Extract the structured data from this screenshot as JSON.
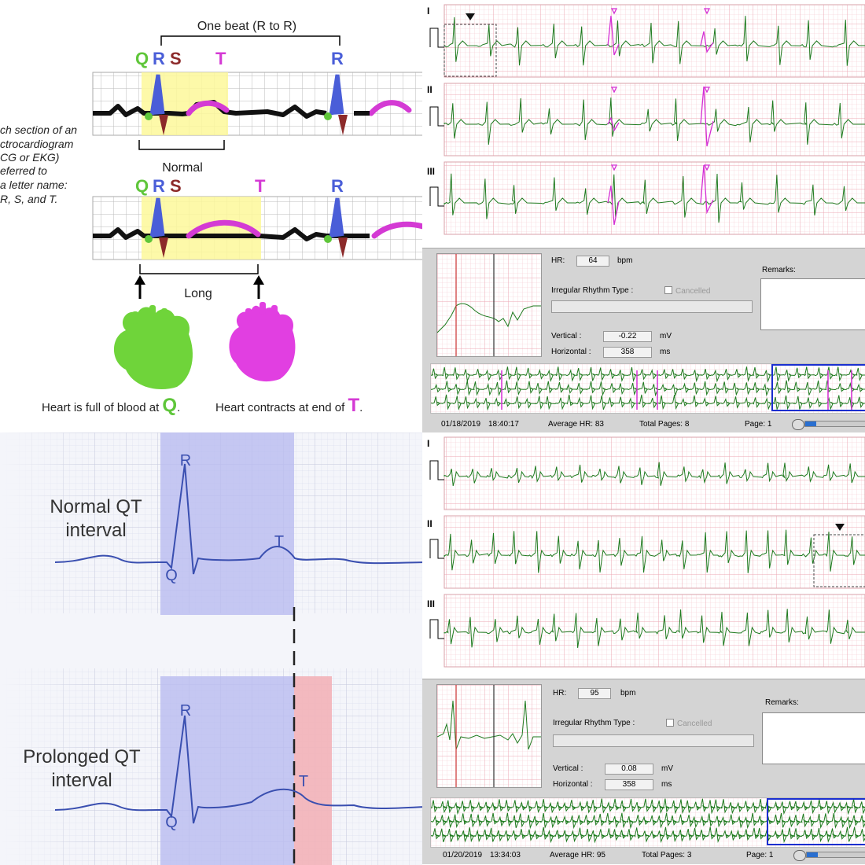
{
  "top_left": {
    "beat_label": "One beat (R to R)",
    "letters_top": {
      "q": "Q",
      "r": "R",
      "s": "S",
      "t": "T",
      "r2": "R"
    },
    "side_text": [
      "ch section of an",
      "ctrocardiogram",
      "CG or EKG)",
      "eferred to",
      "a letter name:",
      "R, S, and T."
    ],
    "normal_label": "Normal",
    "letters_bottom": {
      "q": "Q",
      "r": "R",
      "s": "S",
      "t": "T",
      "r2": "R"
    },
    "long_label": "Long",
    "caption_full": "Heart is full of blood at",
    "caption_full_letter": "Q",
    "caption_full_end": ".",
    "caption_contract": "Heart contracts at end of",
    "caption_contract_letter": "T",
    "caption_contract_end": ".",
    "colors": {
      "q": "#5fc63a",
      "r": "#4a5ed8",
      "s": "#8c2a2a",
      "t": "#d43ad4",
      "highlight": "#fdf89a",
      "heart_green": "#6fd43a",
      "heart_pink": "#e13fe1"
    }
  },
  "bottom_left": {
    "normal_title": "Normal QT\ninterval",
    "normal_title_1": "Normal QT",
    "normal_title_2": "interval",
    "prolonged_title_1": "Prolonged QT",
    "prolonged_title_2": "interval",
    "wave_labels": {
      "r": "R",
      "q": "Q",
      "t": "T"
    },
    "colors": {
      "qt_band": "#b9bcf0",
      "extension": "#f3b3b8",
      "wave": "#3a4fb0"
    }
  },
  "recording_1": {
    "leads": [
      "I",
      "II",
      "III"
    ],
    "hr_label": "HR:",
    "hr_value": "64",
    "hr_unit": "bpm",
    "irregular_label": "Irregular Rhythm Type :",
    "cancelled_label": "Cancelled",
    "remarks_label": "Remarks:",
    "vertical_label": "Vertical :",
    "vertical_value": "-0.22",
    "vertical_unit": "mV",
    "horizontal_label": "Horizontal :",
    "horizontal_value": "358",
    "horizontal_unit": "ms",
    "date": "01/18/2019",
    "time": "18:40:17",
    "average_hr": "Average HR:  83",
    "total_pages": "Total Pages:  8",
    "page": "Page:  1"
  },
  "recording_2": {
    "leads": [
      "I",
      "II",
      "III"
    ],
    "hr_label": "HR:",
    "hr_value": "95",
    "hr_unit": "bpm",
    "irregular_label": "Irregular Rhythm Type :",
    "cancelled_label": "Cancelled",
    "remarks_label": "Remarks:",
    "vertical_label": "Vertical :",
    "vertical_value": "0.08",
    "vertical_unit": "mV",
    "horizontal_label": "Horizontal :",
    "horizontal_value": "358",
    "horizontal_unit": "ms",
    "date": "01/20/2019",
    "time": "13:34:03",
    "average_hr": "Average HR:  95",
    "total_pages": "Total Pages:  3",
    "page": "Page:  1"
  },
  "colors": {
    "ecg_grid": "#f6c7cf",
    "ecg_trace": "#1e7a1e",
    "ecg_highlight": "#d42fd4",
    "selection": "#1a2fd0"
  }
}
